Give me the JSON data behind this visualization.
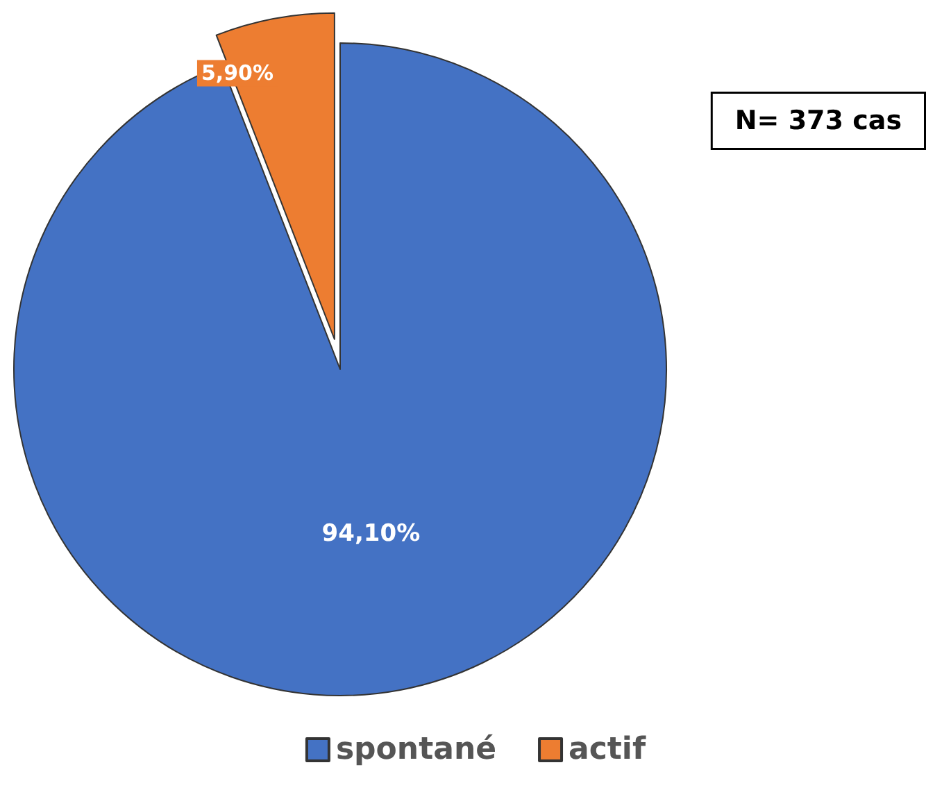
{
  "chart_data": {
    "type": "pie",
    "categories": [
      "spontané",
      "actif"
    ],
    "values": [
      94.1,
      5.9
    ],
    "colors": [
      "#4472c4",
      "#ed7d31"
    ],
    "value_labels": [
      "94,10%",
      "5,90%"
    ],
    "legend": "bottom",
    "annotations": [
      "N= 373 cas"
    ]
  }
}
